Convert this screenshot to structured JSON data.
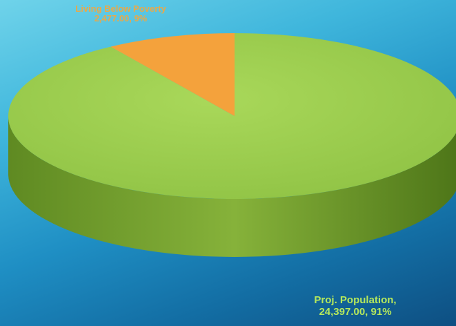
{
  "chart_data": {
    "type": "pie",
    "title": "",
    "slices": [
      {
        "name": "Proj. Population",
        "value": 24397.0,
        "value_label": "24,397.00",
        "percent_label": "91%",
        "color": "#9acd4b",
        "side_color": "#7fa636"
      },
      {
        "name": "Living Below Poverty",
        "value": 2477.0,
        "value_label": "2,477.00",
        "percent_label": "9%",
        "color": "#f4a23c",
        "side_color": "#c87e26"
      }
    ],
    "style": "3d-pie",
    "legend": "none"
  },
  "labels": {
    "large_line1": "Proj. Population,",
    "large_line2": "24,397.00, 91%",
    "small_line1": "Living Below Poverty",
    "small_line2": "2,477.00, 9%"
  },
  "colors": {
    "background_top": "#6fd3ea",
    "background_bottom": "#0e4f82"
  }
}
